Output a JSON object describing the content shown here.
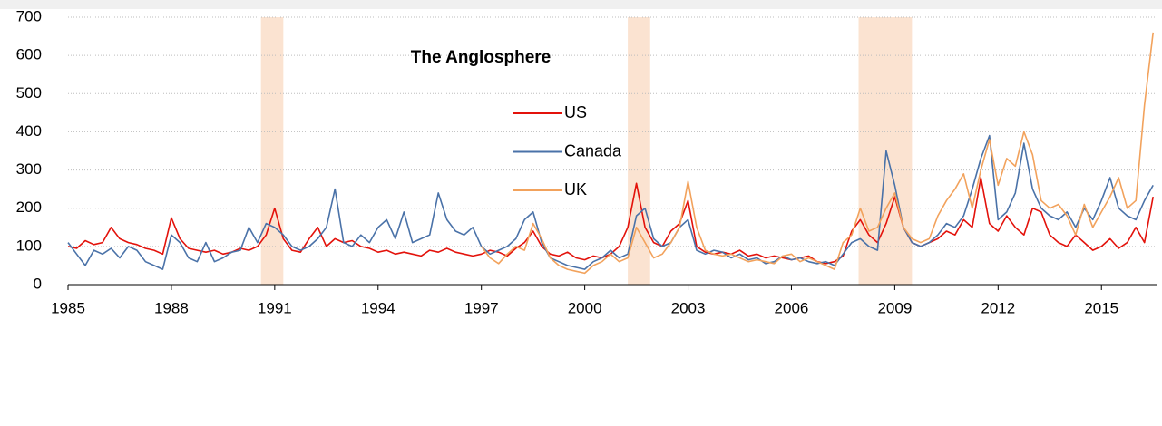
{
  "chart_data": {
    "type": "line",
    "legend_title": "The Anglosphere",
    "x": [
      1985,
      1985.25,
      1985.5,
      1985.75,
      1986,
      1986.25,
      1986.5,
      1986.75,
      1987,
      1987.25,
      1987.5,
      1987.75,
      1988,
      1988.25,
      1988.5,
      1988.75,
      1989,
      1989.25,
      1989.5,
      1989.75,
      1990,
      1990.25,
      1990.5,
      1990.75,
      1991,
      1991.25,
      1991.5,
      1991.75,
      1992,
      1992.25,
      1992.5,
      1992.75,
      1993,
      1993.25,
      1993.5,
      1993.75,
      1994,
      1994.25,
      1994.5,
      1994.75,
      1995,
      1995.25,
      1995.5,
      1995.75,
      1996,
      1996.25,
      1996.5,
      1996.75,
      1997,
      1997.25,
      1997.5,
      1997.75,
      1998,
      1998.25,
      1998.5,
      1998.75,
      1999,
      1999.25,
      1999.5,
      1999.75,
      2000,
      2000.25,
      2000.5,
      2000.75,
      2001,
      2001.25,
      2001.5,
      2001.75,
      2002,
      2002.25,
      2002.5,
      2002.75,
      2003,
      2003.25,
      2003.5,
      2003.75,
      2004,
      2004.25,
      2004.5,
      2004.75,
      2005,
      2005.25,
      2005.5,
      2005.75,
      2006,
      2006.25,
      2006.5,
      2006.75,
      2007,
      2007.25,
      2007.5,
      2007.75,
      2008,
      2008.25,
      2008.5,
      2008.75,
      2009,
      2009.25,
      2009.5,
      2009.75,
      2010,
      2010.25,
      2010.5,
      2010.75,
      2011,
      2011.25,
      2011.5,
      2011.75,
      2012,
      2012.25,
      2012.5,
      2012.75,
      2013,
      2013.25,
      2013.5,
      2013.75,
      2014,
      2014.25,
      2014.5,
      2014.75,
      2015,
      2015.25,
      2015.5,
      2015.75,
      2016,
      2016.25,
      2016.5
    ],
    "series": [
      {
        "name": "US",
        "color": "#e3120b",
        "values": [
          100,
          95,
          115,
          105,
          110,
          150,
          120,
          110,
          105,
          95,
          90,
          80,
          175,
          120,
          95,
          90,
          85,
          90,
          80,
          85,
          95,
          90,
          100,
          130,
          200,
          120,
          90,
          85,
          120,
          150,
          100,
          120,
          110,
          115,
          100,
          95,
          85,
          90,
          80,
          85,
          80,
          75,
          90,
          85,
          95,
          85,
          80,
          75,
          80,
          90,
          85,
          75,
          95,
          110,
          140,
          100,
          80,
          75,
          85,
          70,
          65,
          75,
          70,
          80,
          100,
          150,
          265,
          150,
          110,
          100,
          140,
          160,
          220,
          100,
          85,
          80,
          85,
          80,
          90,
          75,
          80,
          70,
          75,
          70,
          65,
          70,
          75,
          60,
          55,
          60,
          75,
          140,
          170,
          130,
          110,
          160,
          230,
          150,
          110,
          100,
          110,
          120,
          140,
          130,
          170,
          150,
          280,
          160,
          140,
          180,
          150,
          130,
          200,
          190,
          130,
          110,
          100,
          130,
          110,
          90,
          100,
          120,
          95,
          110,
          150,
          110,
          230
        ]
      },
      {
        "name": "Canada",
        "color": "#4a72a8",
        "values": [
          110,
          80,
          50,
          90,
          80,
          95,
          70,
          100,
          90,
          60,
          50,
          40,
          130,
          110,
          70,
          60,
          110,
          60,
          70,
          85,
          90,
          150,
          110,
          160,
          150,
          130,
          100,
          90,
          100,
          120,
          150,
          250,
          110,
          100,
          130,
          110,
          150,
          170,
          120,
          190,
          110,
          120,
          130,
          240,
          170,
          140,
          130,
          150,
          100,
          80,
          90,
          100,
          120,
          170,
          190,
          110,
          70,
          60,
          50,
          45,
          40,
          60,
          70,
          90,
          70,
          80,
          180,
          200,
          120,
          100,
          110,
          150,
          170,
          90,
          80,
          90,
          85,
          70,
          80,
          65,
          70,
          55,
          60,
          75,
          65,
          70,
          60,
          55,
          60,
          50,
          80,
          110,
          120,
          100,
          90,
          350,
          260,
          150,
          110,
          100,
          110,
          130,
          160,
          150,
          180,
          250,
          330,
          390,
          170,
          190,
          240,
          370,
          250,
          200,
          180,
          170,
          190,
          150,
          200,
          170,
          220,
          280,
          200,
          180,
          170,
          220,
          260
        ]
      },
      {
        "name": "UK",
        "color": "#f2a25c",
        "values": [
          null,
          null,
          null,
          null,
          null,
          null,
          null,
          null,
          null,
          null,
          null,
          null,
          null,
          null,
          null,
          null,
          null,
          null,
          null,
          null,
          null,
          null,
          null,
          null,
          null,
          null,
          null,
          null,
          null,
          null,
          null,
          null,
          null,
          null,
          null,
          null,
          null,
          null,
          null,
          null,
          null,
          null,
          null,
          null,
          null,
          null,
          null,
          null,
          100,
          70,
          55,
          80,
          100,
          90,
          160,
          120,
          70,
          50,
          40,
          35,
          30,
          50,
          60,
          80,
          60,
          70,
          150,
          110,
          70,
          80,
          110,
          150,
          270,
          150,
          90,
          80,
          75,
          80,
          70,
          60,
          65,
          60,
          55,
          75,
          80,
          60,
          70,
          60,
          50,
          40,
          110,
          130,
          200,
          140,
          150,
          200,
          240,
          150,
          120,
          110,
          120,
          180,
          220,
          250,
          290,
          200,
          300,
          380,
          260,
          330,
          310,
          400,
          340,
          220,
          200,
          210,
          180,
          130,
          210,
          150,
          190,
          230,
          280,
          200,
          220,
          470,
          660
        ]
      }
    ],
    "shaded_periods": [
      [
        1990.6,
        1991.25
      ],
      [
        2001.25,
        2001.9
      ],
      [
        2007.95,
        2009.5
      ]
    ],
    "shade_color": "#fbe3d1",
    "xlim": [
      1985,
      2016.6
    ],
    "xticks": [
      1985,
      1988,
      1991,
      1994,
      1997,
      2000,
      2003,
      2006,
      2009,
      2012,
      2015
    ],
    "ylim": [
      0,
      700
    ],
    "yticks": [
      0,
      100,
      200,
      300,
      400,
      500,
      600,
      700
    ],
    "grid": true
  }
}
